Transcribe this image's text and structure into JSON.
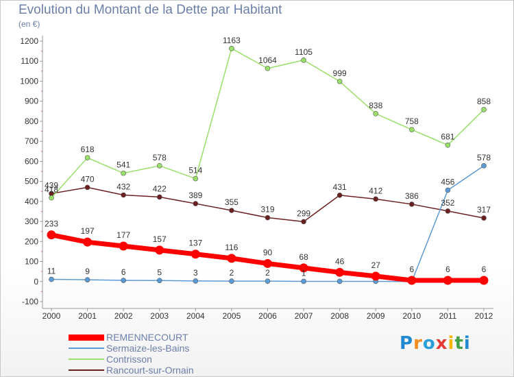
{
  "title": "Evolution du Montant de la Dette par Habitant",
  "subtitle": "(en €)",
  "logo_text": "Proxiti",
  "chart_data": {
    "type": "line",
    "title": "Evolution du Montant de la Dette par Habitant",
    "ylabel": "(en €)",
    "xlabel": "",
    "x": [
      "2000",
      "2001",
      "2002",
      "2003",
      "2004",
      "2005",
      "2006",
      "2007",
      "2008",
      "2009",
      "2010",
      "2011",
      "2012"
    ],
    "ylim": [
      -100,
      1200
    ],
    "yticks": [
      "-100",
      "0",
      "100",
      "200",
      "300",
      "400",
      "500",
      "600",
      "700",
      "800",
      "900",
      "1000",
      "1100",
      "1200"
    ],
    "grid": false,
    "legend_position": "bottom-left",
    "series": [
      {
        "name": "REMENNECOURT",
        "color": "#ff0000",
        "values": [
          233,
          197,
          177,
          157,
          137,
          116,
          90,
          68,
          46,
          27,
          6,
          6,
          6
        ],
        "labels": [
          "233",
          "197",
          "177",
          "157",
          "137",
          "116",
          "90",
          "68",
          "46",
          "27",
          "6",
          "6",
          "6"
        ]
      },
      {
        "name": "Sermaize-les-Bains",
        "color": "#5b9bd5",
        "values": [
          11,
          9,
          6,
          5,
          3,
          2,
          2,
          1,
          1,
          1,
          0,
          456,
          578
        ],
        "labels": [
          "11",
          "9",
          "6",
          "5",
          "3",
          "2",
          "2",
          "1",
          "",
          "",
          "",
          "456",
          "578"
        ]
      },
      {
        "name": "Contrisson",
        "color": "#99e06a",
        "values": [
          418,
          618,
          541,
          578,
          514,
          1163,
          1064,
          1105,
          999,
          838,
          758,
          681,
          858
        ],
        "labels": [
          "418",
          "618",
          "541",
          "578",
          "514",
          "1163",
          "1064",
          "1105",
          "999",
          "838",
          "758",
          "681",
          "858"
        ]
      },
      {
        "name": "Rancourt-sur-Ornain",
        "color": "#6b1f1f",
        "values": [
          439,
          470,
          432,
          422,
          389,
          355,
          319,
          299,
          431,
          412,
          386,
          352,
          317
        ],
        "labels": [
          "439",
          "470",
          "432",
          "422",
          "389",
          "355",
          "319",
          "299",
          "431",
          "412",
          "386",
          "352",
          "317"
        ]
      }
    ]
  }
}
